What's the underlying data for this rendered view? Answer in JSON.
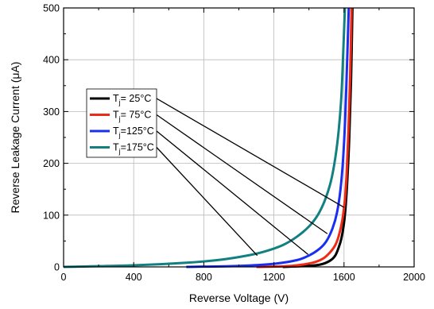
{
  "chart_data": {
    "type": "line",
    "title": "",
    "xlabel": "Reverse Voltage (V)",
    "ylabel": "Reverse Leakage Current (μA)",
    "xlim": [
      0,
      2000
    ],
    "ylim": [
      0,
      500
    ],
    "x_major_ticks": [
      0,
      400,
      800,
      1200,
      1600,
      2000
    ],
    "x_tick_labels": [
      "0",
      "400",
      "800",
      "1200",
      "1600",
      "2000"
    ],
    "y_major_ticks": [
      0,
      100,
      200,
      300,
      400,
      500
    ],
    "y_tick_labels": [
      "0",
      "100",
      "200",
      "300",
      "400",
      "500"
    ],
    "grid": true,
    "legend_placement": "center-left",
    "series": [
      {
        "name_parts": [
          "T",
          "j",
          "=  25°C"
        ],
        "color": "#000000",
        "x": [
          1250,
          1400,
          1470,
          1520,
          1550,
          1570,
          1585,
          1600,
          1610,
          1620,
          1630,
          1640,
          1648
        ],
        "y": [
          0,
          2,
          5,
          12,
          22,
          38,
          55,
          85,
          120,
          175,
          250,
          360,
          500
        ]
      },
      {
        "name_parts": [
          "T",
          "j",
          "=  75°C"
        ],
        "color": "#ee2a16",
        "x": [
          1100,
          1300,
          1420,
          1480,
          1520,
          1550,
          1570,
          1590,
          1605,
          1615,
          1625,
          1635,
          1643
        ],
        "y": [
          0,
          2,
          8,
          16,
          28,
          42,
          60,
          90,
          130,
          180,
          260,
          370,
          500
        ]
      },
      {
        "name_parts": [
          "T",
          "j",
          "=125°C"
        ],
        "color": "#1a2ef2",
        "x": [
          700,
          1000,
          1200,
          1330,
          1400,
          1460,
          1500,
          1535,
          1560,
          1580,
          1595,
          1607,
          1618,
          1627
        ],
        "y": [
          0,
          2,
          6,
          13,
          22,
          35,
          50,
          75,
          105,
          150,
          210,
          290,
          400,
          500
        ]
      },
      {
        "name_parts": [
          "T",
          "j",
          "=175°C"
        ],
        "color": "#128080",
        "x": [
          0,
          400,
          700,
          900,
          1050,
          1150,
          1250,
          1330,
          1400,
          1450,
          1490,
          1525,
          1550,
          1570,
          1585,
          1595,
          1605
        ],
        "y": [
          0,
          3,
          8,
          14,
          22,
          30,
          42,
          58,
          78,
          100,
          128,
          165,
          210,
          265,
          330,
          410,
          500
        ]
      }
    ],
    "annotation_pointers": [
      {
        "from_series": 0,
        "to": [
          1600,
          115
        ]
      },
      {
        "from_series": 1,
        "to": [
          1505,
          64
        ]
      },
      {
        "from_series": 2,
        "to": [
          1395,
          24
        ]
      },
      {
        "from_series": 3,
        "to": [
          1105,
          22
        ]
      }
    ]
  }
}
